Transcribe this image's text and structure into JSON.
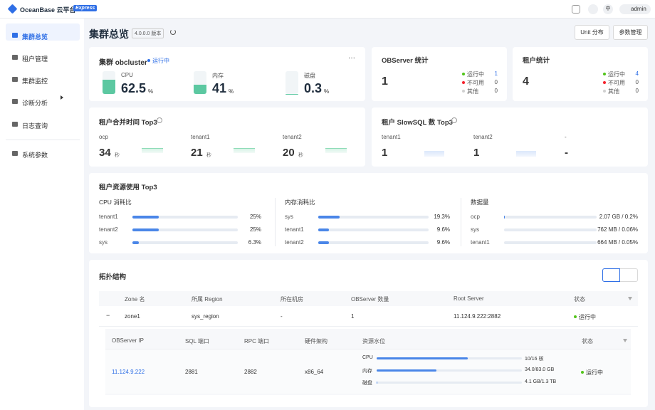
{
  "topbar": {
    "brand": "OceanBase 云平台",
    "badge": "Express",
    "lang": "中",
    "user": "admin"
  },
  "sidebar": {
    "items": [
      "集群总览",
      "租户管理",
      "集群监控",
      "诊断分析",
      "日志查询",
      "系统参数"
    ]
  },
  "header": {
    "title": "集群总览",
    "version": "4.0.0.0 版本",
    "buttons": [
      "Unit 分布",
      "参数管理"
    ]
  },
  "cluster": {
    "title": "集群 obcluster",
    "status": "运行中",
    "more": "···",
    "metrics": [
      {
        "label": "CPU",
        "value": 62.5,
        "unit": "%"
      },
      {
        "label": "内存",
        "value": 41,
        "unit": "%"
      },
      {
        "label": "磁盘",
        "value": 0.3,
        "unit": "%"
      }
    ]
  },
  "observer_stats": {
    "title": "OBServer 统计",
    "total": 1,
    "items": [
      {
        "label": "运行中",
        "value": 1
      },
      {
        "label": "不可用",
        "value": 0
      },
      {
        "label": "其他",
        "value": 0
      }
    ]
  },
  "tenant_stats": {
    "title": "租户统计",
    "total": 4,
    "items": [
      {
        "label": "运行中",
        "value": 4
      },
      {
        "label": "不可用",
        "value": 0
      },
      {
        "label": "其他",
        "value": 0
      }
    ]
  },
  "merge_time": {
    "title": "租户合并时间 Top3",
    "unit": "秒",
    "items": [
      {
        "name": "ocp",
        "value": 34
      },
      {
        "name": "tenant1",
        "value": 21
      },
      {
        "name": "tenant2",
        "value": 20
      }
    ]
  },
  "slow_sql": {
    "title": "租户 SlowSQL 数 Top3",
    "items": [
      {
        "name": "tenant1",
        "value": 1
      },
      {
        "name": "tenant2",
        "value": 1
      },
      {
        "name": "-",
        "value": "-"
      }
    ]
  },
  "resource": {
    "title": "租户资源使用 Top3",
    "groups": [
      {
        "title": "CPU 消耗比",
        "rows": [
          {
            "name": "tenant1",
            "value": 25,
            "label": "25%"
          },
          {
            "name": "tenant2",
            "value": 25,
            "label": "25%"
          },
          {
            "name": "sys",
            "value": 6.3,
            "label": "6.3%"
          }
        ]
      },
      {
        "title": "内存消耗比",
        "rows": [
          {
            "name": "sys",
            "value": 19.3,
            "label": "19.3%"
          },
          {
            "name": "tenant1",
            "value": 9.6,
            "label": "9.6%"
          },
          {
            "name": "tenant2",
            "value": 9.6,
            "label": "9.6%"
          }
        ]
      },
      {
        "title": "数据量",
        "rows": [
          {
            "name": "ocp",
            "value": 0.2,
            "label": "2.07 GB / 0.2%"
          },
          {
            "name": "sys",
            "value": 0.06,
            "label": "762 MB / 0.06%"
          },
          {
            "name": "tenant1",
            "value": 0.05,
            "label": "664 MB / 0.05%"
          }
        ]
      }
    ]
  },
  "topology": {
    "title": "拓扑结构",
    "columns": [
      "Zone 名",
      "所属 Region",
      "所在机房",
      "OBServer 数量",
      "Root Server",
      "状态"
    ],
    "rows": [
      {
        "toggle": "−",
        "cells": [
          "zone1",
          "sys_region",
          "-",
          "1",
          "11.124.9.222:2882",
          "运行中"
        ]
      }
    ],
    "servers": {
      "columns": [
        "OBServer IP",
        "SQL 端口",
        "RPC 端口",
        "硬件架构",
        "资源水位",
        "状态"
      ],
      "rows": [
        {
          "ip": "11.124.9.222",
          "sql_port": "2881",
          "rpc_port": "2882",
          "arch": "x86_64",
          "status": "运行中",
          "resources": [
            {
              "label": "CPU",
              "used": 10,
              "total": 16,
              "text": "10/16 核"
            },
            {
              "label": "内存",
              "used": 34.0,
              "total": 83.0,
              "text": "34.0/83.0 GB"
            },
            {
              "label": "磁盘",
              "used": 4.1,
              "total": 1300,
              "text": "4.1 GB/1.3 TB"
            }
          ]
        }
      ]
    }
  }
}
